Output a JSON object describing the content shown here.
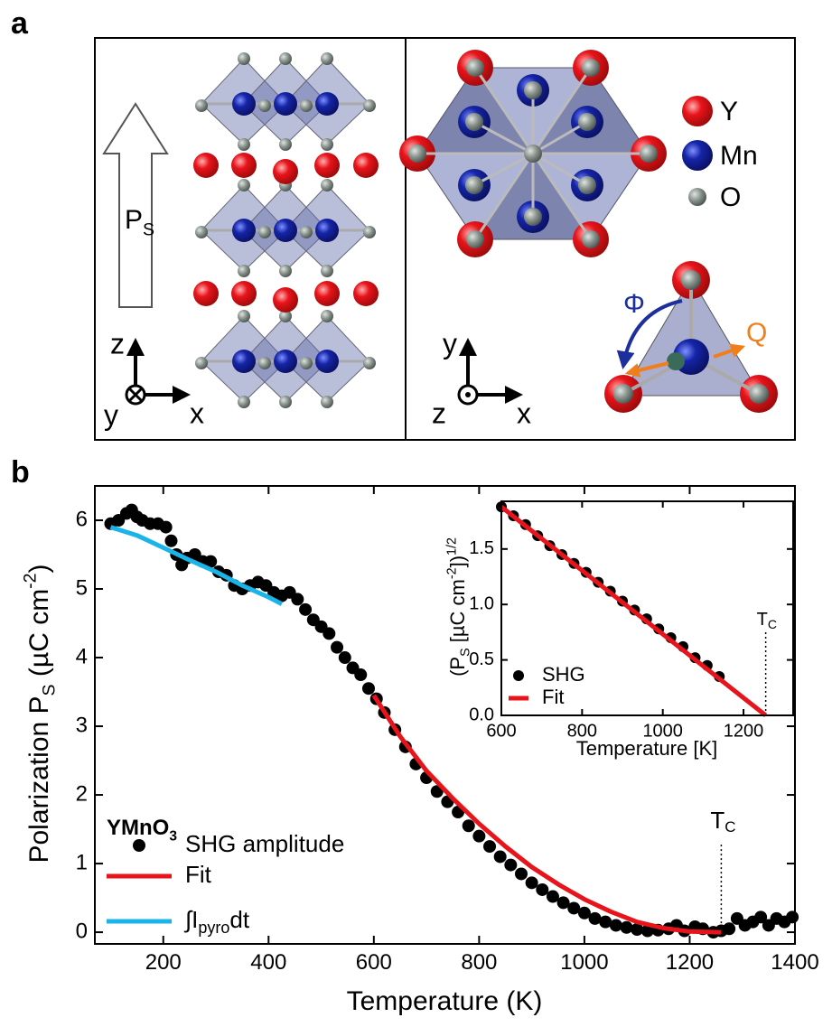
{
  "panel_labels": {
    "a": "a",
    "b": "b"
  },
  "structure": {
    "polarization": {
      "text": "P",
      "sub": "S"
    },
    "axes_left": {
      "z": "z",
      "y": "y",
      "x": "x"
    },
    "axes_right": {
      "y": "y",
      "z": "z",
      "x": "x"
    },
    "legend": [
      "Y",
      "Mn",
      "O"
    ],
    "phi": "Φ",
    "q": "Q"
  },
  "chart_data": [
    {
      "type": "scatter",
      "xlabel": "Temperature (K)",
      "ylabel": {
        "text": "Polarization P",
        "sub": "S",
        "mid": " (µC cm",
        "sup": "-2",
        "end": ")"
      },
      "xlim": [
        70,
        1400
      ],
      "ylim": [
        -0.17,
        6.5
      ],
      "xticks": [
        200,
        400,
        600,
        800,
        1000,
        1200,
        1400
      ],
      "yticks": [
        0,
        1,
        2,
        3,
        4,
        5,
        6
      ],
      "legend": "lower left",
      "legend_title": {
        "text": "YMnO",
        "sub": "3"
      },
      "series": [
        {
          "name": "SHG amplitude",
          "mode": "markers",
          "color": "#000000",
          "x": [
            100,
            115,
            130,
            140,
            150,
            160,
            175,
            190,
            205,
            215,
            225,
            235,
            245,
            260,
            275,
            290,
            305,
            320,
            335,
            350,
            365,
            380,
            395,
            410,
            425,
            440,
            455,
            470,
            485,
            500,
            515,
            530,
            545,
            560,
            575,
            590,
            605,
            620,
            640,
            660,
            680,
            700,
            720,
            740,
            760,
            780,
            800,
            820,
            840,
            860,
            880,
            900,
            920,
            940,
            960,
            980,
            1000,
            1020,
            1040,
            1060,
            1080,
            1100,
            1120,
            1140,
            1160,
            1175,
            1190,
            1210,
            1225,
            1245,
            1260,
            1275,
            1290,
            1305,
            1320,
            1335,
            1350,
            1365,
            1380,
            1395
          ],
          "values": [
            5.95,
            6.0,
            6.1,
            6.15,
            6.05,
            6.0,
            5.95,
            5.95,
            5.9,
            5.7,
            5.5,
            5.35,
            5.45,
            5.5,
            5.4,
            5.4,
            5.25,
            5.2,
            5.05,
            5.0,
            5.05,
            5.1,
            5.05,
            4.95,
            4.9,
            4.95,
            4.85,
            4.7,
            4.55,
            4.45,
            4.35,
            4.15,
            4.0,
            3.85,
            3.75,
            3.55,
            3.4,
            3.2,
            2.95,
            2.7,
            2.45,
            2.25,
            2.05,
            1.9,
            1.75,
            1.55,
            1.4,
            1.25,
            1.1,
            0.98,
            0.85,
            0.72,
            0.62,
            0.52,
            0.43,
            0.35,
            0.28,
            0.2,
            0.15,
            0.1,
            0.07,
            0.04,
            0.02,
            0.03,
            0.05,
            0.1,
            0.02,
            0.08,
            0.05,
            0.0,
            0.02,
            0.05,
            0.2,
            0.1,
            0.15,
            0.22,
            0.1,
            0.2,
            0.15,
            0.22
          ]
        },
        {
          "name": "Fit",
          "mode": "lines",
          "color": "#e8141b",
          "x": [
            600,
            650,
            700,
            750,
            800,
            850,
            900,
            950,
            1000,
            1050,
            1100,
            1150,
            1200,
            1260
          ],
          "values": [
            3.45,
            2.85,
            2.35,
            1.95,
            1.58,
            1.25,
            0.95,
            0.7,
            0.48,
            0.3,
            0.15,
            0.06,
            0.01,
            0.0
          ]
        },
        {
          "name": "∫I",
          "name_sub": "pyro",
          "name_after": "dt",
          "mode": "lines",
          "color": "#19b5e8",
          "x": [
            100,
            150,
            200,
            250,
            300,
            350,
            400,
            425
          ],
          "values": [
            5.9,
            5.78,
            5.6,
            5.42,
            5.25,
            5.05,
            4.88,
            4.78
          ]
        }
      ],
      "annotations": [
        {
          "text": "T",
          "sub": "C",
          "x": 1260
        }
      ]
    },
    {
      "type": "scatter",
      "xlabel": "Temperature [K]",
      "ylabel": {
        "text": "(P",
        "sub": "S",
        "mid": " [µC cm",
        "sup": "-2",
        "end": "])",
        "sup2": "1/2"
      },
      "xlim": [
        600,
        1323
      ],
      "ylim": [
        0,
        1.93
      ],
      "xticks": [
        600,
        800,
        1000,
        1200
      ],
      "yticks": [
        {
          "value": 0,
          "label": "0.0"
        },
        0.5,
        {
          "value": 1,
          "label": "1.0"
        },
        1.5
      ],
      "legend": "lower left",
      "series": [
        {
          "name": "SHG",
          "mode": "markers",
          "color": "#000000",
          "x": [
            600,
            630,
            660,
            690,
            720,
            750,
            780,
            810,
            840,
            870,
            900,
            930,
            960,
            990,
            1020,
            1050,
            1080,
            1110,
            1140
          ],
          "values": [
            1.88,
            1.8,
            1.72,
            1.62,
            1.53,
            1.45,
            1.37,
            1.29,
            1.2,
            1.12,
            1.03,
            0.95,
            0.87,
            0.78,
            0.7,
            0.62,
            0.52,
            0.45,
            0.35
          ]
        },
        {
          "name": "Fit",
          "mode": "lines",
          "color": "#e8141b",
          "x": [
            600,
            1255
          ],
          "values": [
            1.88,
            0
          ]
        }
      ],
      "annotations": [
        {
          "text": "T",
          "sub": "C",
          "x": 1255
        }
      ]
    }
  ]
}
